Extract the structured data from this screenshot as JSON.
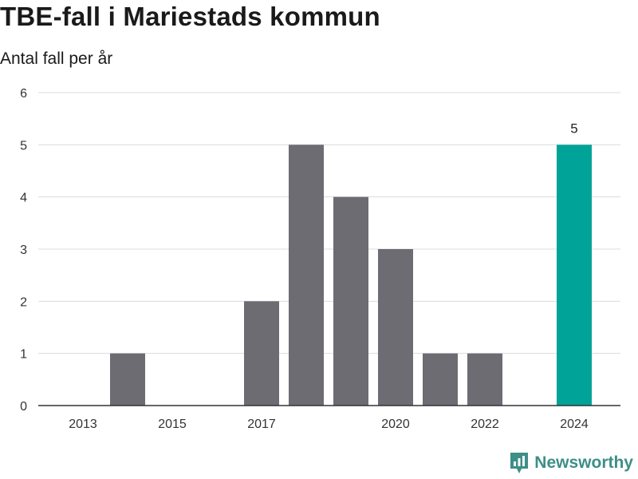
{
  "chart_data": {
    "type": "bar",
    "title": "TBE-fall i Mariestads kommun",
    "subtitle": "Antal fall per år",
    "x": [
      2013,
      2014,
      2015,
      2016,
      2017,
      2018,
      2019,
      2020,
      2021,
      2022,
      2023,
      2024
    ],
    "values": [
      0,
      1,
      0,
      0,
      2,
      5,
      4,
      3,
      1,
      1,
      0,
      5
    ],
    "x_tick_labels": [
      "2013",
      "2015",
      "2017",
      "2020",
      "2022",
      "2024"
    ],
    "y_ticks": [
      0,
      1,
      2,
      3,
      4,
      5,
      6
    ],
    "ylim": [
      0,
      6
    ],
    "grid": true,
    "highlight": {
      "x": 2024,
      "label": "5",
      "color": "#00a398"
    },
    "bar_color": "#6d6c72"
  },
  "brand": {
    "name": "Newsworthy",
    "icon": "newsworthy-logo-icon",
    "color": "#3d8f87"
  }
}
